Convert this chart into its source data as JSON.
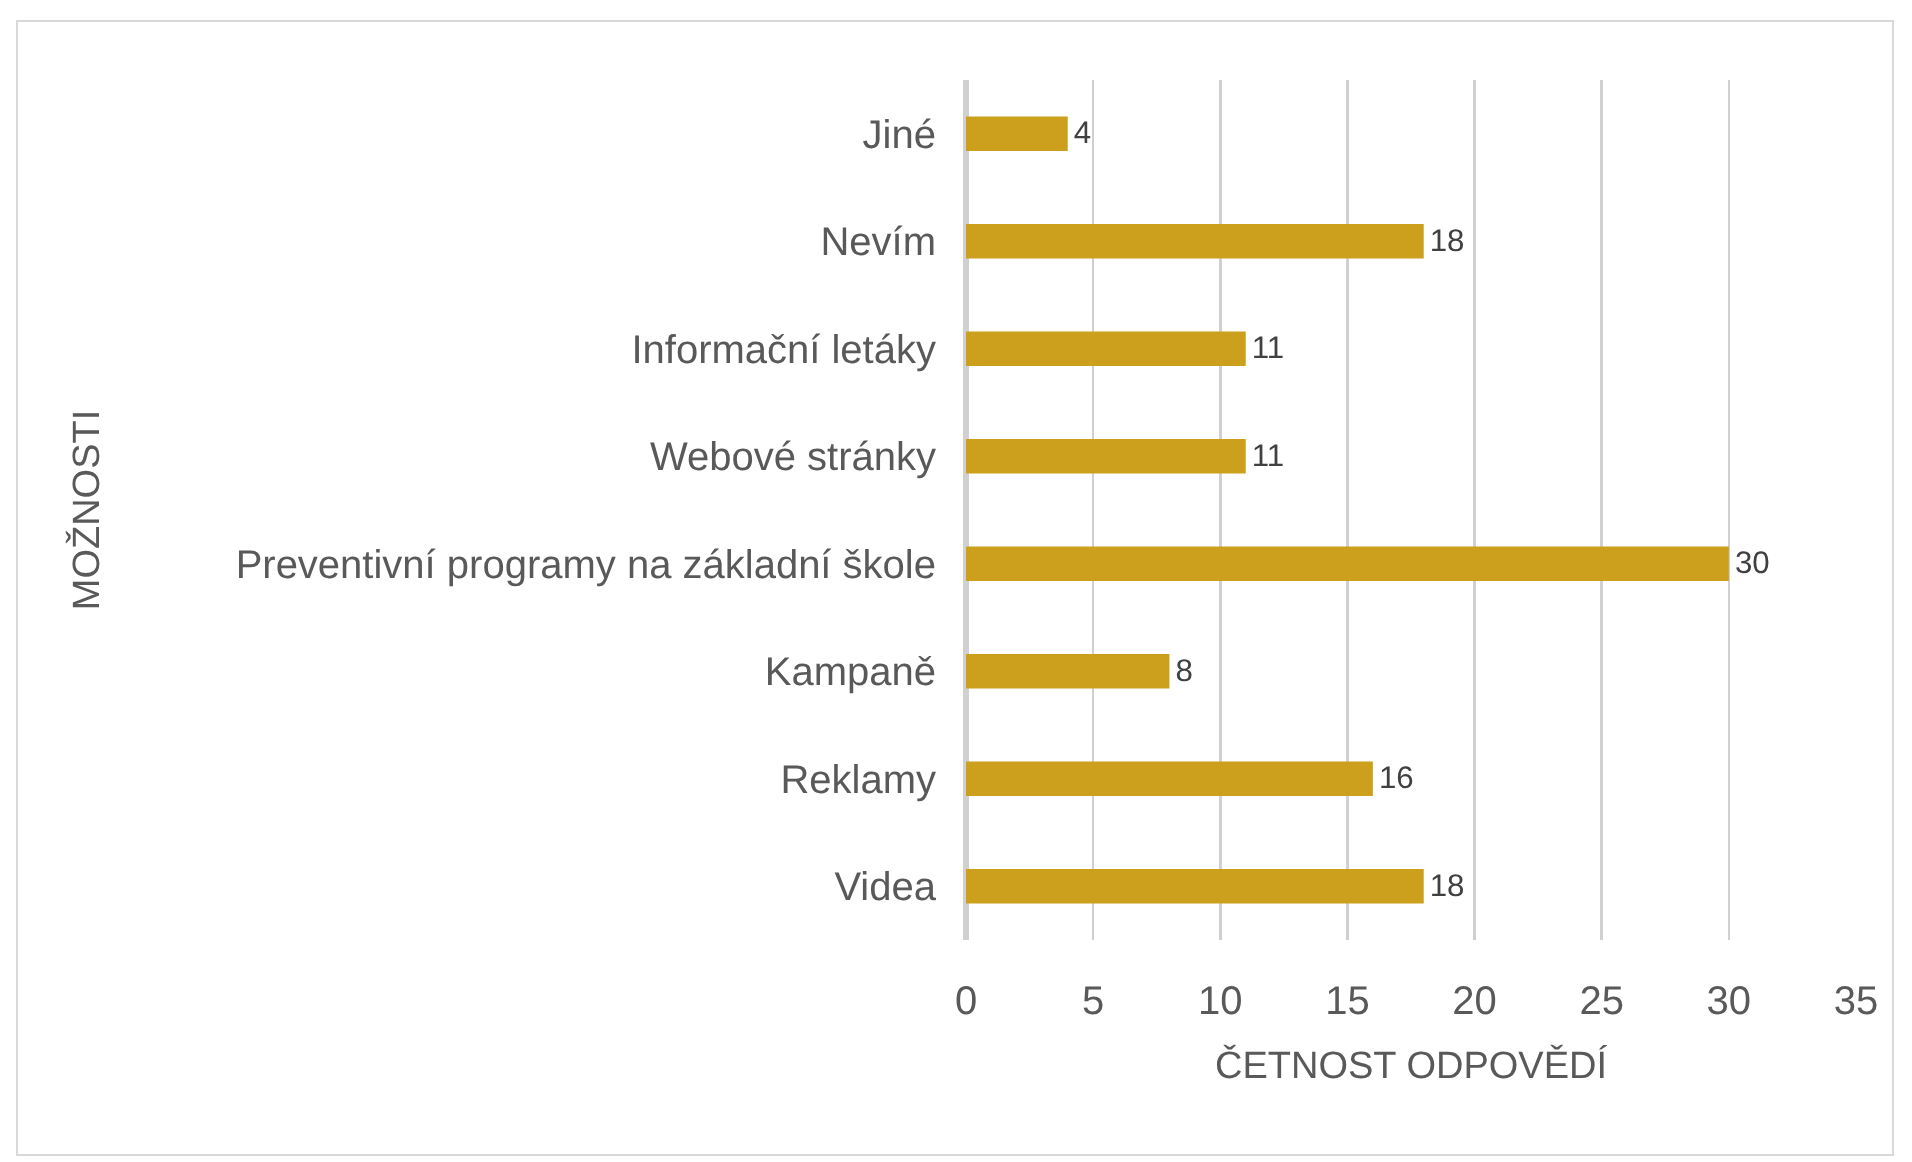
{
  "chart_data": {
    "type": "bar",
    "orientation": "horizontal",
    "categories": [
      "Jiné",
      "Nevím",
      "Informační letáky",
      "Webové stránky",
      "Preventivní programy na základní škole",
      "Kampaně",
      "Reklamy",
      "Videa"
    ],
    "values": [
      4,
      18,
      11,
      11,
      30,
      8,
      16,
      18
    ],
    "color": "#cc9f1c",
    "xlim": [
      0,
      35
    ],
    "xticks": [
      0,
      5,
      10,
      15,
      20,
      25,
      30,
      35
    ],
    "xlabel": "ČETNOST ODPOVĚDÍ",
    "ylabel": "MOŽNOSTI",
    "grid": "x",
    "data_labels": true,
    "legend": false
  }
}
